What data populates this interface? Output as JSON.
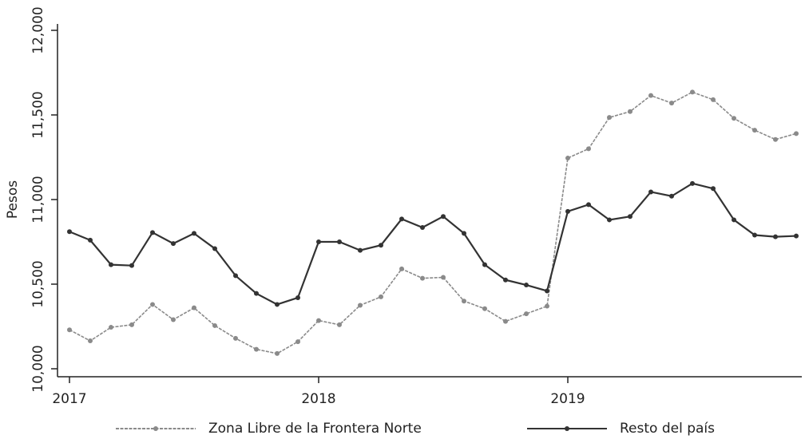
{
  "chart_data": {
    "type": "line",
    "y_label": "Pesos",
    "categories": [
      "2017",
      null,
      null,
      null,
      null,
      null,
      null,
      null,
      null,
      null,
      null,
      null,
      "2018",
      null,
      null,
      null,
      null,
      null,
      null,
      null,
      null,
      null,
      null,
      null,
      "2019",
      null,
      null,
      null,
      null,
      null,
      null,
      null,
      null,
      null,
      null,
      null
    ],
    "series": [
      {
        "name": "Zona Libre de la Frontera Norte",
        "color": "#8a8a8a",
        "values": [
          10230,
          10165,
          10245,
          10260,
          10380,
          10290,
          10360,
          10255,
          10180,
          10115,
          10090,
          10160,
          10285,
          10260,
          10375,
          10425,
          10590,
          10535,
          10540,
          10400,
          10355,
          10280,
          10325,
          10370,
          11245,
          11300,
          11485,
          11520,
          11615,
          11570,
          11635,
          11590,
          11480,
          11410,
          11355,
          11390
        ]
      },
      {
        "name": "Resto del país",
        "color": "#333333",
        "values": [
          10810,
          10760,
          10615,
          10610,
          10805,
          10740,
          10800,
          10710,
          10550,
          10445,
          10380,
          10420,
          10750,
          10750,
          10700,
          10730,
          10885,
          10835,
          10900,
          10800,
          10615,
          10525,
          10495,
          10460,
          10930,
          10970,
          10880,
          10900,
          11045,
          11020,
          11095,
          11065,
          10880,
          10790,
          10780,
          10785
        ]
      }
    ],
    "ylim": [
      9960,
      12020
    ],
    "yticks": [
      {
        "value": 10000,
        "label": "10,000"
      },
      {
        "value": 10500,
        "label": "10,500"
      },
      {
        "value": 11000,
        "label": "11,000"
      },
      {
        "value": 11500,
        "label": "11,500"
      },
      {
        "value": 12000,
        "label": "12,000"
      }
    ],
    "grid": false,
    "legend": "bottom"
  }
}
